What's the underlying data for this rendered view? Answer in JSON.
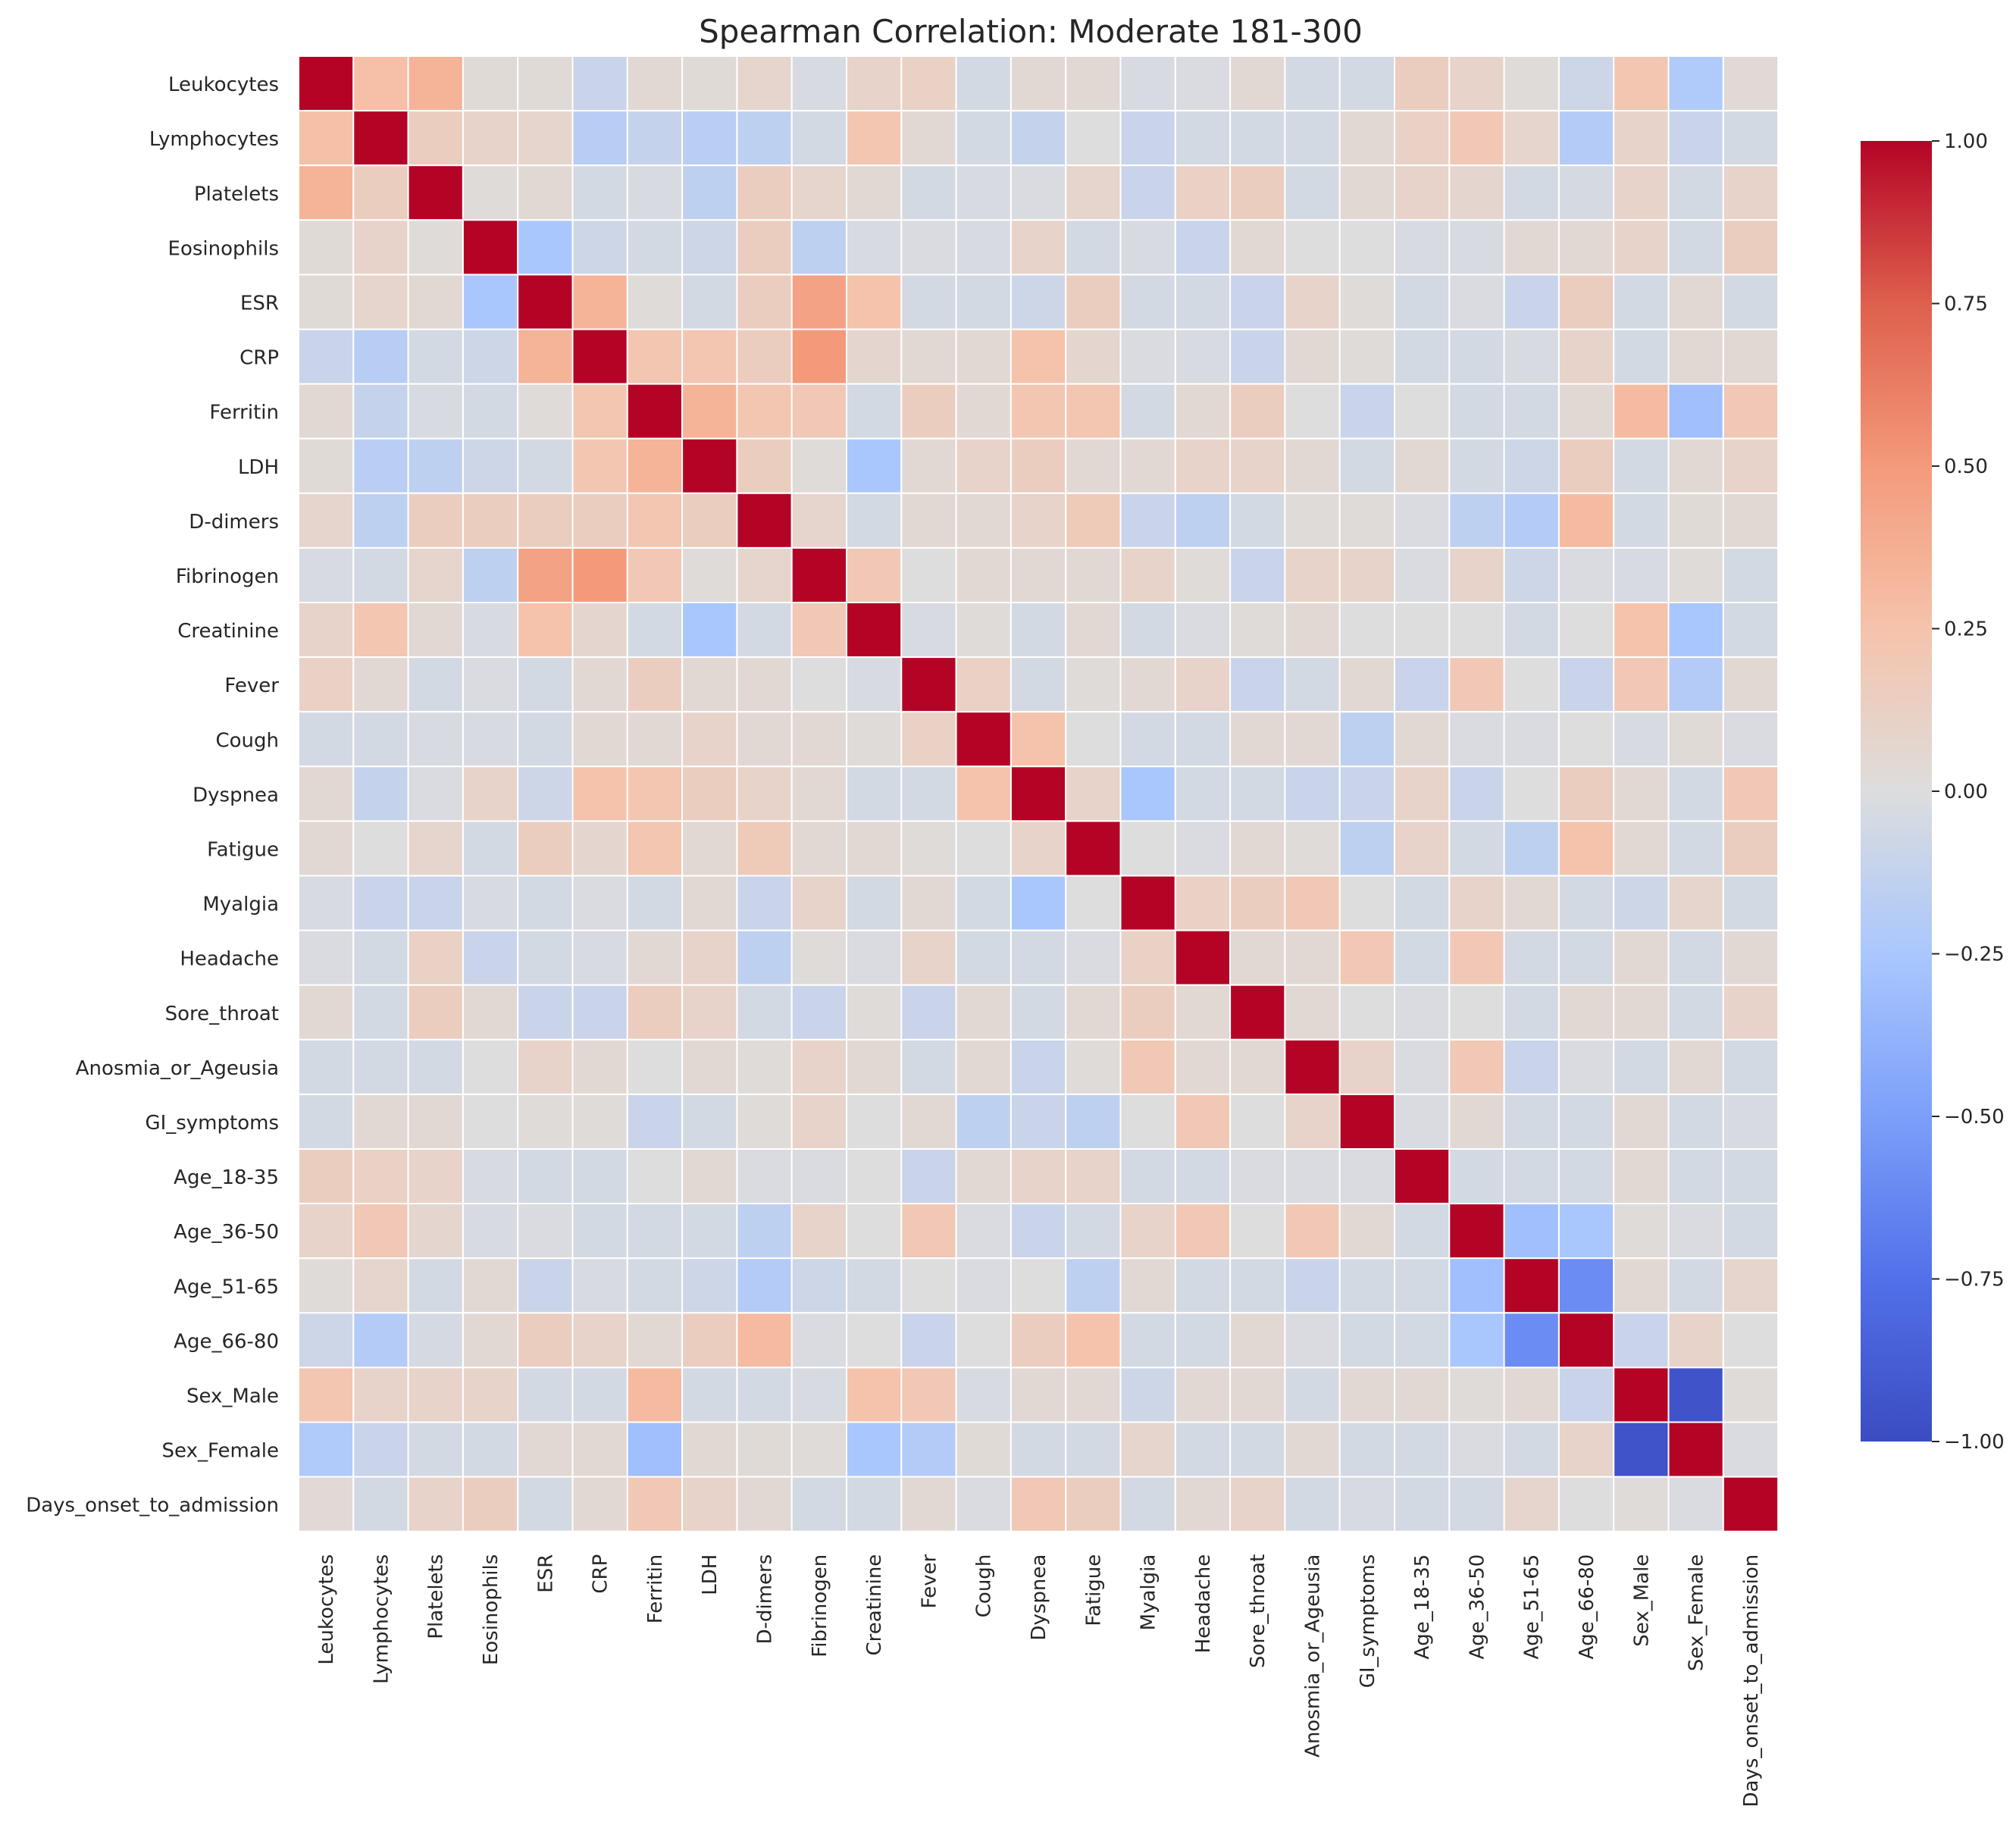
{
  "chart_data": {
    "type": "heatmap",
    "title": "Spearman Correlation: Moderate 181-300",
    "xlabel": "",
    "ylabel": "",
    "labels": [
      "Leukocytes",
      "Lymphocytes",
      "Platelets",
      "Eosinophils",
      "ESR",
      "CRP",
      "Ferritin",
      "LDH",
      "D-dimers",
      "Fibrinogen",
      "Creatinine",
      "Fever",
      "Cough",
      "Dyspnea",
      "Fatigue",
      "Myalgia",
      "Headache",
      "Sore_throat",
      "Anosmia_or_Ageusia",
      "GI_symptoms",
      "Age_18-35",
      "Age_36-50",
      "Age_51-65",
      "Age_66-80",
      "Sex_Male",
      "Sex_Female",
      "Days_onset_to_admission"
    ],
    "matrix": [
      [
        1.0,
        0.27,
        0.35,
        0.03,
        0.03,
        -0.1,
        0.05,
        0.03,
        0.08,
        -0.03,
        0.1,
        0.12,
        -0.05,
        0.05,
        0.05,
        -0.03,
        -0.02,
        0.05,
        -0.05,
        -0.05,
        0.15,
        0.1,
        0.02,
        -0.08,
        0.22,
        -0.22,
        0.04
      ],
      [
        0.27,
        1.0,
        0.15,
        0.1,
        0.08,
        -0.18,
        -0.12,
        -0.17,
        -0.15,
        -0.05,
        0.22,
        0.05,
        -0.05,
        -0.12,
        0.0,
        -0.1,
        -0.05,
        -0.05,
        -0.05,
        0.05,
        0.12,
        0.2,
        0.08,
        -0.2,
        0.1,
        -0.1,
        -0.05
      ],
      [
        0.35,
        0.15,
        1.0,
        0.02,
        0.05,
        -0.05,
        -0.03,
        -0.15,
        0.15,
        0.08,
        0.05,
        -0.05,
        -0.03,
        -0.02,
        0.08,
        -0.1,
        0.12,
        0.15,
        -0.05,
        0.05,
        0.1,
        0.07,
        -0.05,
        -0.04,
        0.1,
        -0.05,
        0.1
      ],
      [
        0.03,
        0.1,
        0.02,
        1.0,
        -0.25,
        -0.08,
        -0.05,
        -0.08,
        0.15,
        -0.15,
        -0.03,
        -0.02,
        -0.03,
        0.1,
        -0.05,
        -0.03,
        -0.1,
        0.05,
        0.0,
        0.0,
        -0.03,
        -0.03,
        0.05,
        0.05,
        0.1,
        -0.05,
        0.15
      ],
      [
        0.03,
        0.08,
        0.05,
        -0.25,
        1.0,
        0.35,
        0.02,
        -0.05,
        0.15,
        0.45,
        0.25,
        -0.05,
        -0.05,
        -0.08,
        0.15,
        -0.05,
        -0.05,
        -0.1,
        0.1,
        0.02,
        -0.05,
        -0.02,
        -0.1,
        0.15,
        -0.05,
        0.05,
        -0.05
      ],
      [
        -0.1,
        -0.18,
        -0.05,
        -0.08,
        0.35,
        1.0,
        0.22,
        0.22,
        0.15,
        0.5,
        0.07,
        0.05,
        0.05,
        0.25,
        0.07,
        -0.02,
        -0.03,
        -0.1,
        0.05,
        0.02,
        -0.05,
        -0.05,
        -0.03,
        0.1,
        -0.05,
        0.05,
        0.05
      ],
      [
        0.05,
        -0.12,
        -0.03,
        -0.05,
        0.02,
        0.22,
        1.0,
        0.35,
        0.22,
        0.2,
        -0.05,
        0.15,
        0.05,
        0.22,
        0.22,
        -0.05,
        0.05,
        0.15,
        0.0,
        -0.1,
        0.0,
        -0.05,
        -0.05,
        0.05,
        0.3,
        -0.3,
        0.2
      ],
      [
        0.03,
        -0.17,
        -0.15,
        -0.08,
        -0.05,
        0.22,
        0.35,
        1.0,
        0.15,
        0.02,
        -0.25,
        0.05,
        0.1,
        0.15,
        0.05,
        0.05,
        0.1,
        0.1,
        0.05,
        -0.05,
        0.05,
        -0.05,
        -0.08,
        0.15,
        -0.05,
        0.05,
        0.1
      ],
      [
        0.08,
        -0.15,
        0.15,
        0.15,
        0.15,
        0.15,
        0.22,
        0.15,
        1.0,
        0.08,
        -0.05,
        0.05,
        0.05,
        0.1,
        0.18,
        -0.1,
        -0.15,
        -0.05,
        0.02,
        0.02,
        -0.02,
        -0.15,
        -0.2,
        0.3,
        -0.05,
        0.03,
        0.05
      ],
      [
        -0.03,
        -0.05,
        0.08,
        -0.15,
        0.45,
        0.5,
        0.2,
        0.02,
        0.08,
        1.0,
        0.2,
        0.0,
        0.05,
        0.05,
        0.05,
        0.1,
        0.02,
        -0.1,
        0.1,
        0.1,
        -0.02,
        0.1,
        -0.08,
        -0.02,
        -0.03,
        0.02,
        -0.05
      ],
      [
        0.1,
        0.22,
        0.05,
        -0.03,
        0.25,
        0.07,
        -0.05,
        -0.25,
        -0.05,
        0.2,
        1.0,
        -0.03,
        0.02,
        -0.05,
        0.05,
        -0.05,
        -0.02,
        0.02,
        0.05,
        0.0,
        0.0,
        0.0,
        -0.05,
        0.0,
        0.25,
        -0.25,
        -0.05
      ],
      [
        0.12,
        0.05,
        -0.05,
        -0.02,
        -0.05,
        0.05,
        0.15,
        0.05,
        0.05,
        0.0,
        -0.03,
        1.0,
        0.12,
        -0.05,
        0.02,
        0.05,
        0.1,
        -0.1,
        -0.05,
        0.05,
        -0.1,
        0.2,
        0.0,
        -0.1,
        0.2,
        -0.2,
        0.05
      ],
      [
        -0.05,
        -0.05,
        -0.03,
        -0.03,
        -0.05,
        0.05,
        0.05,
        0.1,
        0.05,
        0.05,
        0.02,
        0.12,
        1.0,
        0.25,
        0.0,
        -0.05,
        -0.05,
        0.05,
        0.05,
        -0.15,
        0.05,
        -0.02,
        -0.02,
        0.0,
        -0.03,
        0.03,
        -0.02
      ],
      [
        0.05,
        -0.12,
        -0.02,
        0.1,
        -0.08,
        0.25,
        0.22,
        0.15,
        0.1,
        0.05,
        -0.05,
        -0.05,
        0.25,
        1.0,
        0.1,
        -0.25,
        -0.05,
        -0.05,
        -0.1,
        -0.1,
        0.1,
        -0.1,
        0.0,
        0.15,
        0.05,
        -0.05,
        0.2
      ],
      [
        0.05,
        0.0,
        0.08,
        -0.05,
        0.15,
        0.07,
        0.22,
        0.05,
        0.18,
        0.05,
        0.05,
        0.02,
        0.0,
        0.1,
        1.0,
        0.0,
        -0.02,
        0.05,
        0.02,
        -0.15,
        0.1,
        -0.05,
        -0.15,
        0.25,
        0.05,
        -0.05,
        0.15
      ],
      [
        -0.03,
        -0.1,
        -0.1,
        -0.03,
        -0.05,
        -0.02,
        -0.05,
        0.05,
        -0.1,
        0.1,
        -0.05,
        0.05,
        -0.05,
        -0.25,
        0.0,
        1.0,
        0.12,
        0.15,
        0.2,
        0.0,
        -0.05,
        0.1,
        0.05,
        -0.05,
        -0.08,
        0.08,
        -0.05
      ],
      [
        -0.02,
        -0.05,
        0.12,
        -0.1,
        -0.05,
        -0.03,
        0.05,
        0.1,
        -0.15,
        0.02,
        -0.02,
        0.1,
        -0.05,
        -0.05,
        -0.02,
        0.12,
        1.0,
        0.05,
        0.05,
        0.2,
        -0.05,
        0.2,
        -0.05,
        -0.05,
        0.05,
        -0.05,
        0.05
      ],
      [
        0.05,
        -0.05,
        0.15,
        0.05,
        -0.1,
        -0.1,
        0.15,
        0.1,
        -0.05,
        -0.1,
        0.02,
        -0.1,
        0.05,
        -0.05,
        0.05,
        0.15,
        0.05,
        1.0,
        0.05,
        0.0,
        -0.02,
        0.0,
        -0.05,
        0.05,
        0.05,
        -0.05,
        0.1
      ],
      [
        -0.05,
        -0.05,
        -0.05,
        0.0,
        0.1,
        0.05,
        0.0,
        0.05,
        0.02,
        0.1,
        0.05,
        -0.05,
        0.05,
        -0.1,
        0.02,
        0.2,
        0.05,
        0.05,
        1.0,
        0.1,
        -0.02,
        0.2,
        -0.1,
        -0.02,
        -0.05,
        0.05,
        -0.05
      ],
      [
        -0.05,
        0.05,
        0.05,
        0.0,
        0.02,
        0.02,
        -0.1,
        -0.05,
        0.02,
        0.1,
        0.0,
        0.05,
        -0.15,
        -0.1,
        -0.15,
        0.0,
        0.2,
        0.0,
        0.1,
        1.0,
        -0.02,
        0.05,
        -0.05,
        -0.05,
        0.05,
        -0.05,
        -0.03
      ],
      [
        0.15,
        0.12,
        0.1,
        -0.03,
        -0.05,
        -0.05,
        0.0,
        0.05,
        -0.02,
        -0.02,
        0.0,
        -0.1,
        0.05,
        0.1,
        0.1,
        -0.05,
        -0.05,
        -0.02,
        -0.02,
        -0.02,
        1.0,
        -0.05,
        -0.05,
        -0.05,
        0.05,
        -0.05,
        -0.05
      ],
      [
        0.1,
        0.2,
        0.07,
        -0.03,
        -0.02,
        -0.05,
        -0.05,
        -0.05,
        -0.15,
        0.1,
        0.0,
        0.2,
        -0.02,
        -0.1,
        -0.05,
        0.1,
        0.2,
        0.0,
        0.2,
        0.05,
        -0.05,
        1.0,
        -0.3,
        -0.25,
        0.02,
        -0.02,
        -0.05
      ],
      [
        0.02,
        0.08,
        -0.05,
        0.05,
        -0.1,
        -0.03,
        -0.05,
        -0.08,
        -0.2,
        -0.08,
        -0.05,
        0.0,
        -0.02,
        0.0,
        -0.15,
        0.05,
        -0.05,
        -0.05,
        -0.1,
        -0.05,
        -0.05,
        -0.3,
        1.0,
        -0.6,
        0.05,
        -0.05,
        0.08
      ],
      [
        -0.08,
        -0.2,
        -0.04,
        0.05,
        0.15,
        0.1,
        0.05,
        0.15,
        0.3,
        -0.02,
        0.0,
        -0.1,
        0.0,
        0.15,
        0.25,
        -0.05,
        -0.05,
        0.05,
        -0.02,
        -0.05,
        -0.05,
        -0.25,
        -0.6,
        1.0,
        -0.1,
        0.1,
        0.0
      ],
      [
        0.22,
        0.1,
        0.1,
        0.1,
        -0.05,
        -0.05,
        0.3,
        -0.05,
        -0.05,
        -0.03,
        0.25,
        0.2,
        -0.03,
        0.05,
        0.05,
        -0.08,
        0.05,
        0.05,
        -0.05,
        0.05,
        0.05,
        0.02,
        0.05,
        -0.1,
        1.0,
        -0.95,
        0.02
      ],
      [
        -0.22,
        -0.1,
        -0.05,
        -0.05,
        0.05,
        0.05,
        -0.3,
        0.05,
        0.03,
        0.02,
        -0.25,
        -0.2,
        0.03,
        -0.05,
        -0.05,
        0.08,
        -0.05,
        -0.05,
        0.05,
        -0.05,
        -0.05,
        -0.02,
        -0.05,
        0.1,
        -0.95,
        1.0,
        -0.02
      ],
      [
        0.04,
        -0.05,
        0.1,
        0.15,
        -0.05,
        0.05,
        0.2,
        0.1,
        0.05,
        -0.05,
        -0.05,
        0.05,
        -0.02,
        0.2,
        0.15,
        -0.05,
        0.05,
        0.1,
        -0.05,
        -0.03,
        -0.05,
        -0.05,
        0.08,
        0.0,
        0.02,
        -0.02,
        1.0
      ]
    ],
    "vmin": -1.0,
    "vmax": 1.0,
    "colormap": "coolwarm",
    "colorbar": {
      "ticks": [
        1.0,
        0.75,
        0.5,
        0.25,
        0.0,
        -0.25,
        -0.5,
        -0.75,
        -1.0
      ],
      "tick_labels": [
        "1.00",
        "0.75",
        "0.50",
        "0.25",
        "0.00",
        "−0.25",
        "−0.50",
        "−0.75",
        "−1.00"
      ]
    },
    "colors": {
      "cell_border": "#ffffff",
      "text": "#262626",
      "low": "#3b4cc0",
      "mid": "#dddddd",
      "high": "#b40426"
    }
  }
}
